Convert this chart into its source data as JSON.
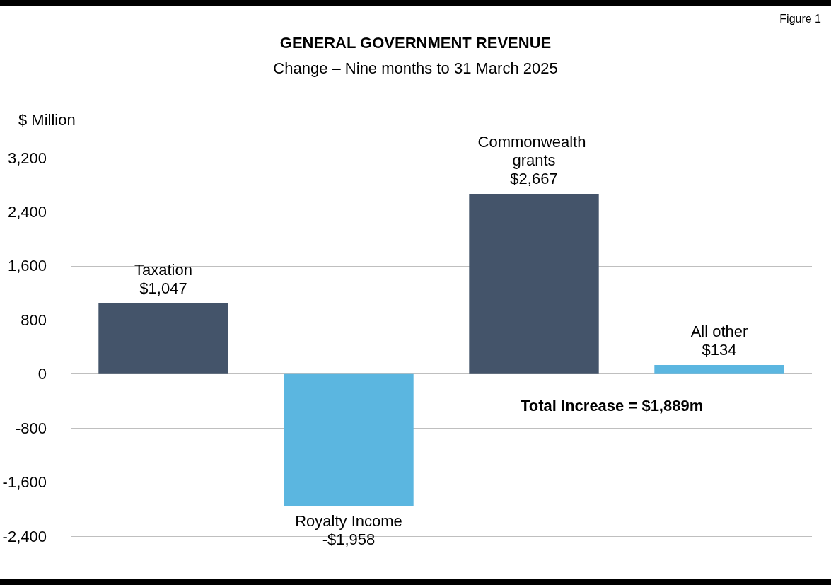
{
  "chart_data": {
    "type": "bar",
    "title": "GENERAL GOVERNMENT REVENUE",
    "subtitle": "Change – Nine months to 31 March 2025",
    "ylabel": "$ Million",
    "annotations": [
      "Figure 1",
      "Total Increase = $1,889m"
    ],
    "categories": [
      "Taxation",
      "Royalty Income",
      "Commonwealth grants",
      "All other"
    ],
    "values": [
      1047,
      -1958,
      2667,
      134
    ],
    "value_labels": [
      "$1,047",
      "-$1,958",
      "$2,667",
      "$134"
    ],
    "colors": [
      "#44546a",
      "#5bb6e0",
      "#44546a",
      "#5bb6e0"
    ],
    "ylim": [
      -2400,
      3200
    ],
    "yticks": [
      {
        "value": -2400,
        "label": "-2,400"
      },
      {
        "value": -1600,
        "label": "-1,600"
      },
      -800,
      0,
      800,
      {
        "value": 1600,
        "label": "1,600"
      },
      {
        "value": 2400,
        "label": "2,400"
      },
      {
        "value": 3200,
        "label": "3,200"
      }
    ],
    "grid": "y",
    "tick_labels": "y"
  }
}
